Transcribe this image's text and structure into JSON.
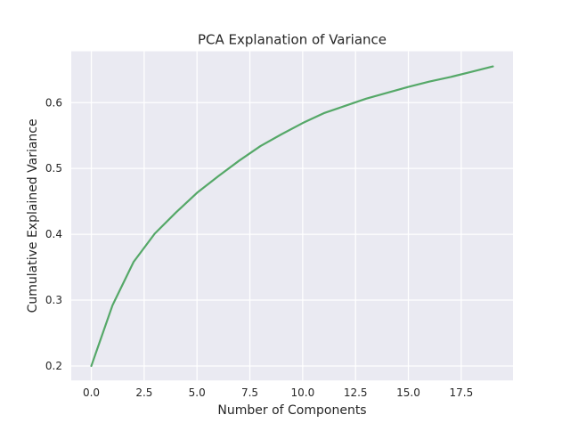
{
  "chart_data": {
    "type": "line",
    "title": "PCA Explanation of Variance",
    "xlabel": "Number of Components",
    "ylabel": "Cumulative Explained Variance",
    "xlim": [
      -0.95,
      19.95
    ],
    "ylim": [
      0.178,
      0.678
    ],
    "xticks": [
      0.0,
      2.5,
      5.0,
      7.5,
      10.0,
      12.5,
      15.0,
      17.5
    ],
    "xtick_labels": [
      "0.0",
      "2.5",
      "5.0",
      "7.5",
      "10.0",
      "12.5",
      "15.0",
      "17.5"
    ],
    "yticks": [
      0.2,
      0.3,
      0.4,
      0.5,
      0.6
    ],
    "ytick_labels": [
      "0.2",
      "0.3",
      "0.4",
      "0.5",
      "0.6"
    ],
    "grid": true,
    "legend": false,
    "style": {
      "background": "#eaeaf2",
      "grid_color": "#ffffff",
      "line_color": "#55a868"
    },
    "series": [
      {
        "x": [
          0,
          1,
          2,
          3,
          4,
          5,
          6,
          7,
          8,
          9,
          10,
          11,
          12,
          13,
          14,
          15,
          16,
          17,
          18,
          19
        ],
        "values": [
          0.2,
          0.292,
          0.358,
          0.401,
          0.433,
          0.463,
          0.488,
          0.512,
          0.534,
          0.552,
          0.569,
          0.584,
          0.595,
          0.606,
          0.615,
          0.624,
          0.632,
          0.639,
          0.647,
          0.655
        ]
      }
    ]
  }
}
